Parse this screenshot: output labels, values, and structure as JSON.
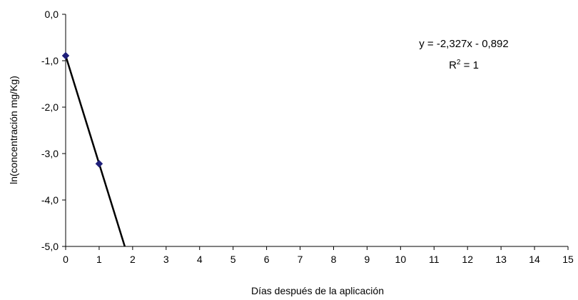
{
  "chart_data": {
    "type": "scatter",
    "xlabel": "Días después de la aplicación",
    "ylabel": "ln(concentración mg/Kg)",
    "xlim": [
      0,
      15
    ],
    "ylim": [
      -5,
      0
    ],
    "x_ticks": [
      0,
      1,
      2,
      3,
      4,
      5,
      6,
      7,
      8,
      9,
      10,
      11,
      12,
      13,
      14,
      15
    ],
    "y_ticks": [
      0,
      -1,
      -2,
      -3,
      -4,
      -5
    ],
    "y_tick_labels": [
      "0,0",
      "-1,0",
      "-2,0",
      "-3,0",
      "-4,0",
      "-5,0"
    ],
    "grid": false,
    "series": [
      {
        "points": [
          {
            "x": 0,
            "y": -0.892
          },
          {
            "x": 1,
            "y": -3.219
          }
        ],
        "marker": "diamond",
        "color": "#1f1f7a"
      }
    ],
    "trendline": {
      "slope": -2.327,
      "intercept": -0.892,
      "color": "#000000"
    },
    "annotations": {
      "equation": "y = -2,327x - 0,892",
      "r2_prefix": "R",
      "r2_sup": "2",
      "r2_suffix": " = 1"
    }
  }
}
